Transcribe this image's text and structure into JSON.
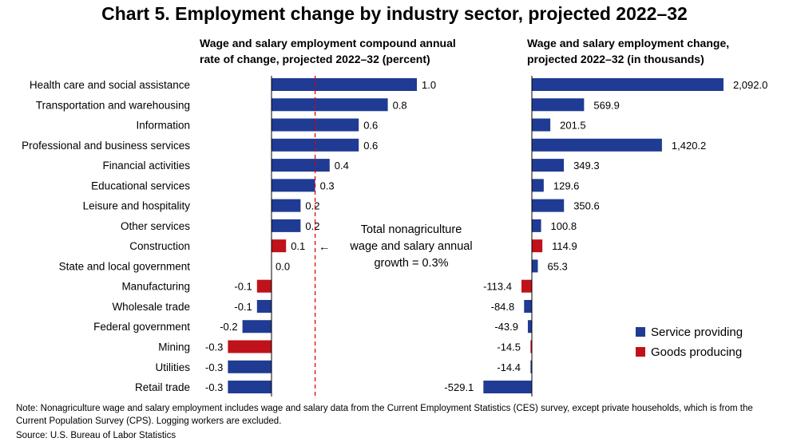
{
  "title": "Chart 5. Employment change by industry sector, projected 2022–32",
  "note": "Note: Nonagriculture wage and salary employment includes wage and salary data from the Current Employment Statistics (CES) survey, except private households, which is from the Current Population Survey (CPS). Logging workers are excluded.",
  "source": "Source: U.S. Bureau of Labor Statistics",
  "colors": {
    "service": "#1f3b93",
    "goods": "#c0121a",
    "dashed_line": "#e00000"
  },
  "chart_data": [
    {
      "type": "bar",
      "orientation": "horizontal",
      "title_lines": [
        "Wage and salary employment compound annual",
        "rate of change, projected 2022–32 (percent)"
      ],
      "categories": [
        "Health care and social assistance",
        "Transportation and warehousing",
        "Information",
        "Professional and business services",
        "Financial activities",
        "Educational services",
        "Leisure and hospitality",
        "Other services",
        "Construction",
        "State and local government",
        "Manufacturing",
        "Wholesale trade",
        "Federal government",
        "Mining",
        "Utilities",
        "Retail trade"
      ],
      "values": [
        1.0,
        0.8,
        0.6,
        0.6,
        0.4,
        0.3,
        0.2,
        0.2,
        0.1,
        0.0,
        -0.1,
        -0.1,
        -0.2,
        -0.3,
        -0.3,
        -0.3
      ],
      "labels": [
        "1.0",
        "0.8",
        "0.6",
        "0.6",
        "0.4",
        "0.3",
        "0.2",
        "0.2",
        "0.1",
        "0.0",
        "-0.1",
        "-0.1",
        "-0.2",
        "-0.3",
        "-0.3",
        "-0.3"
      ],
      "groups": [
        "service",
        "service",
        "service",
        "service",
        "service",
        "service",
        "service",
        "service",
        "goods",
        "service",
        "goods",
        "service",
        "service",
        "goods",
        "service",
        "service"
      ],
      "reference_line": {
        "value": 0.3,
        "style": "dashed"
      },
      "annotation_lines": [
        "Total nonagriculture",
        "wage and salary annual",
        "growth = 0.3%"
      ],
      "annotation_arrow": "←"
    },
    {
      "type": "bar",
      "orientation": "horizontal",
      "title_lines": [
        "Wage and salary employment change,",
        "projected 2022–32 (in thousands)"
      ],
      "categories": [
        "Health care and social assistance",
        "Transportation and warehousing",
        "Information",
        "Professional and business services",
        "Financial activities",
        "Educational services",
        "Leisure and hospitality",
        "Other services",
        "Construction",
        "State and local government",
        "Manufacturing",
        "Wholesale trade",
        "Federal government",
        "Mining",
        "Utilities",
        "Retail trade"
      ],
      "values": [
        2092.0,
        569.9,
        201.5,
        1420.2,
        349.3,
        129.6,
        350.6,
        100.8,
        114.9,
        65.3,
        -113.4,
        -84.8,
        -43.9,
        -14.5,
        -14.4,
        -529.1
      ],
      "labels": [
        "2,092.0",
        "569.9",
        "201.5",
        "1,420.2",
        "349.3",
        "129.6",
        "350.6",
        "100.8",
        "114.9",
        "65.3",
        "-113.4",
        "-84.8",
        "-43.9",
        "-14.5",
        "-14.4",
        "-529.1"
      ],
      "groups": [
        "service",
        "service",
        "service",
        "service",
        "service",
        "service",
        "service",
        "service",
        "goods",
        "service",
        "goods",
        "service",
        "service",
        "goods",
        "service",
        "service"
      ]
    }
  ],
  "legend": [
    {
      "key": "service",
      "label": "Service providing"
    },
    {
      "key": "goods",
      "label": "Goods producing"
    }
  ]
}
